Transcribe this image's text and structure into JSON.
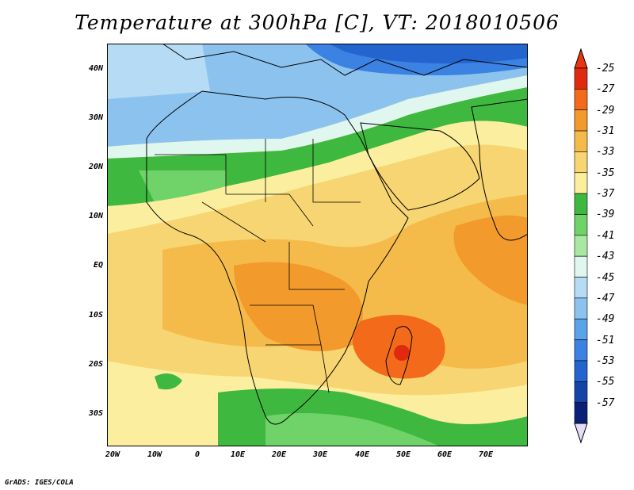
{
  "title": "Temperature at 300hPa [C], VT: 2018010506",
  "footer": "GrADS: IGES/COLA",
  "map": {
    "lat_labels": [
      "40N",
      "30N",
      "20N",
      "10N",
      "EQ",
      "10S",
      "20S",
      "30S"
    ],
    "lon_labels": [
      "20W",
      "10W",
      "0",
      "10E",
      "20E",
      "30E",
      "40E",
      "50E",
      "60E",
      "70E"
    ]
  },
  "colorbar": {
    "labels": [
      "-25",
      "-27",
      "-29",
      "-31",
      "-33",
      "-35",
      "-37",
      "-39",
      "-41",
      "-43",
      "-45",
      "-47",
      "-49",
      "-51",
      "-53",
      "-55",
      "-57"
    ],
    "colors": [
      "#e02a10",
      "#f26a1a",
      "#f29a2c",
      "#f5bb4a",
      "#f7d572",
      "#fbee9e",
      "#3fb83f",
      "#6fd36a",
      "#a8e8a0",
      "#dff7ee",
      "#b6dcf5",
      "#8cc3ee",
      "#5aa3e8",
      "#3b82e2",
      "#2364cf",
      "#1444a8",
      "#0a1f78"
    ],
    "top_arrow_color": "#e8350f",
    "bottom_arrow_color": "#e6dcf8"
  }
}
